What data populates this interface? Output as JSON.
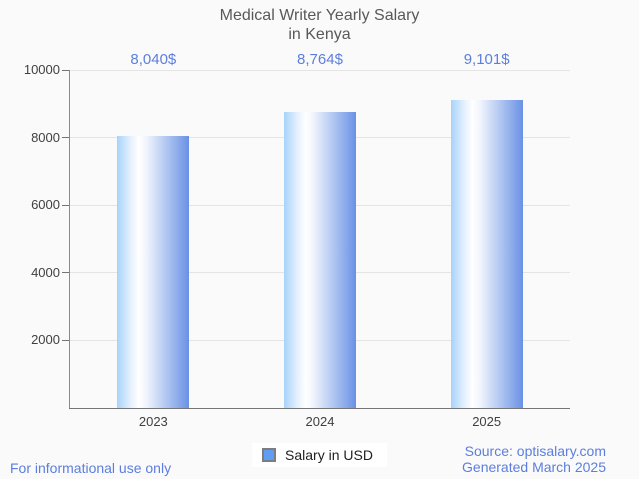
{
  "title": {
    "line1": "Medical Writer Yearly Salary",
    "line2": "in Kenya"
  },
  "chart_data": {
    "type": "bar",
    "categories": [
      "2023",
      "2024",
      "2025"
    ],
    "series": [
      {
        "name": "Salary in USD",
        "values": [
          8040,
          8764,
          9101
        ]
      }
    ],
    "value_labels": [
      "8,040$",
      "8,764$",
      "9,101$"
    ],
    "title": "Medical Writer Yearly Salary in Kenya",
    "xlabel": "",
    "ylabel": "",
    "ylim": [
      0,
      10000
    ],
    "yticks": [
      2000,
      4000,
      6000,
      8000,
      10000
    ],
    "grid": true,
    "legend_position": "bottom",
    "bar_gradient": [
      "#a7d3fa",
      "#ffffff",
      "#6a91e5"
    ]
  },
  "legend": {
    "label": "Salary in USD"
  },
  "footer": {
    "disclaimer": "For informational use only",
    "source": "Source: optisalary.com",
    "generated": "Generated March 2025"
  },
  "colors": {
    "background": "#fafafa",
    "title_text": "#58595b",
    "axis_text": "#404040",
    "accent_text": "#5c7ede",
    "axis_line": "#757575",
    "gridline": "#e4e4e4",
    "legend_swatch": "#5f9cf2",
    "legend_bg": "#ffffff"
  }
}
